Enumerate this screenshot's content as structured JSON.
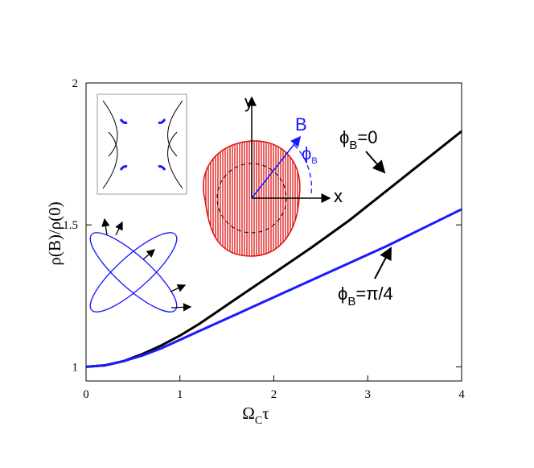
{
  "chart_data": {
    "type": "line",
    "xlabel": "Ω",
    "xlabel_sub": "C",
    "xlabel_tail": "τ",
    "ylabel": "ρ(B)/ρ(0)",
    "xlim": [
      0,
      4
    ],
    "ylim": [
      0.95,
      2.0
    ],
    "xticks": [
      "0",
      "1",
      "2",
      "3",
      "4"
    ],
    "yticks": [
      "1",
      "1.5",
      "2"
    ],
    "grid": false,
    "series": [
      {
        "name": "ϕB=0",
        "color": "#000000",
        "x": [
          0,
          0.2,
          0.4,
          0.6,
          0.8,
          1.0,
          1.2,
          1.4,
          1.6,
          1.8,
          2.0,
          2.4,
          2.8,
          3.2,
          3.6,
          4.0
        ],
        "y": [
          1.0,
          1.005,
          1.02,
          1.045,
          1.075,
          1.11,
          1.15,
          1.195,
          1.24,
          1.285,
          1.33,
          1.42,
          1.515,
          1.62,
          1.725,
          1.83
        ]
      },
      {
        "name": "ϕB=π/4",
        "color": "#1a1aff",
        "x": [
          0,
          0.2,
          0.4,
          0.6,
          0.8,
          1.0,
          1.2,
          1.4,
          1.6,
          1.8,
          2.0,
          2.4,
          2.8,
          3.2,
          3.6,
          4.0
        ],
        "y": [
          1.0,
          1.005,
          1.02,
          1.04,
          1.065,
          1.095,
          1.125,
          1.155,
          1.185,
          1.215,
          1.245,
          1.305,
          1.365,
          1.425,
          1.49,
          1.555
        ]
      }
    ],
    "annotations": {
      "phi0": {
        "main": "ϕ",
        "sub": "B",
        "tail": "=0"
      },
      "phi45": {
        "main": "ϕ",
        "sub": "B",
        "tail": "=π/4"
      },
      "inset_B": "B",
      "inset_phiB": {
        "main": "ϕ",
        "sub": "B"
      },
      "inset_x": "x",
      "inset_y": "y"
    },
    "colors": {
      "fermi_surface": "#e01010",
      "field_vector": "#1a1aff"
    }
  }
}
